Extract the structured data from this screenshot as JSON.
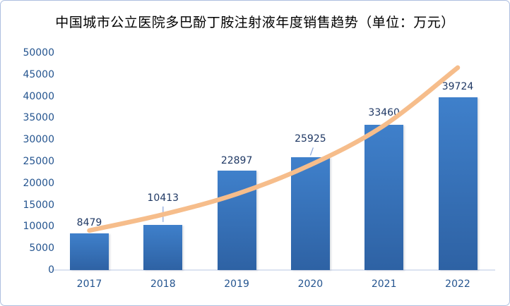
{
  "frame": {
    "border_color": "#aebfe0"
  },
  "chart_data": {
    "type": "bar",
    "title": "中国城市公立医院多巴酚丁胺注射液年度销售趋势（单位：万元）",
    "categories": [
      "2017",
      "2018",
      "2019",
      "2020",
      "2021",
      "2022"
    ],
    "values": [
      8479,
      10413,
      22897,
      25925,
      33460,
      39724
    ],
    "data_labels": [
      "8479",
      "10413",
      "22897",
      "25925",
      "33460",
      "39724"
    ],
    "xlabel": "",
    "ylabel": "",
    "ylim": [
      0,
      50000
    ],
    "ytick_step": 5000,
    "ytick_labels": [
      "0",
      "5000",
      "10000",
      "15000",
      "20000",
      "25000",
      "30000",
      "35000",
      "40000",
      "45000",
      "50000"
    ],
    "grid": false,
    "legend": false,
    "trendline": {
      "shape": "smooth exponential-style curve over bars",
      "values_est": [
        9100,
        12800,
        17500,
        24200,
        33300,
        46600
      ],
      "color": "#f6bd8b"
    },
    "colors": {
      "bar_top": "#3f80cb",
      "bar_bottom": "#2e62a4",
      "data_label": "#1f3864",
      "axis_text": "#24548f",
      "axis_line": "#dce3f1",
      "trend": "#f6bd8b",
      "leader_line": "#8faadc"
    }
  }
}
